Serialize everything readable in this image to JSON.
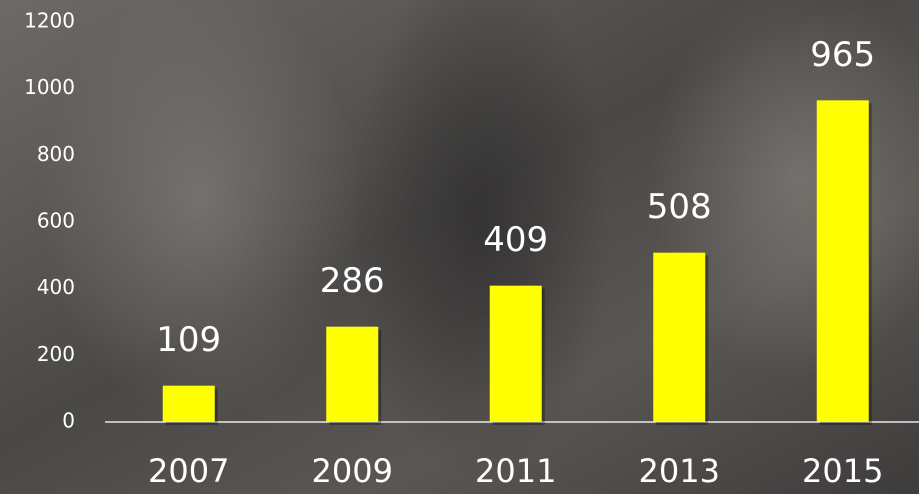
{
  "chart_data": {
    "type": "bar",
    "categories": [
      "2007",
      "2009",
      "2011",
      "2013",
      "2015"
    ],
    "values": [
      109,
      286,
      409,
      508,
      965
    ],
    "color": "#ffff00",
    "ylim": [
      0,
      1200
    ],
    "yticks": [
      0,
      200,
      400,
      600,
      800,
      1000,
      1200
    ],
    "grid": false
  }
}
